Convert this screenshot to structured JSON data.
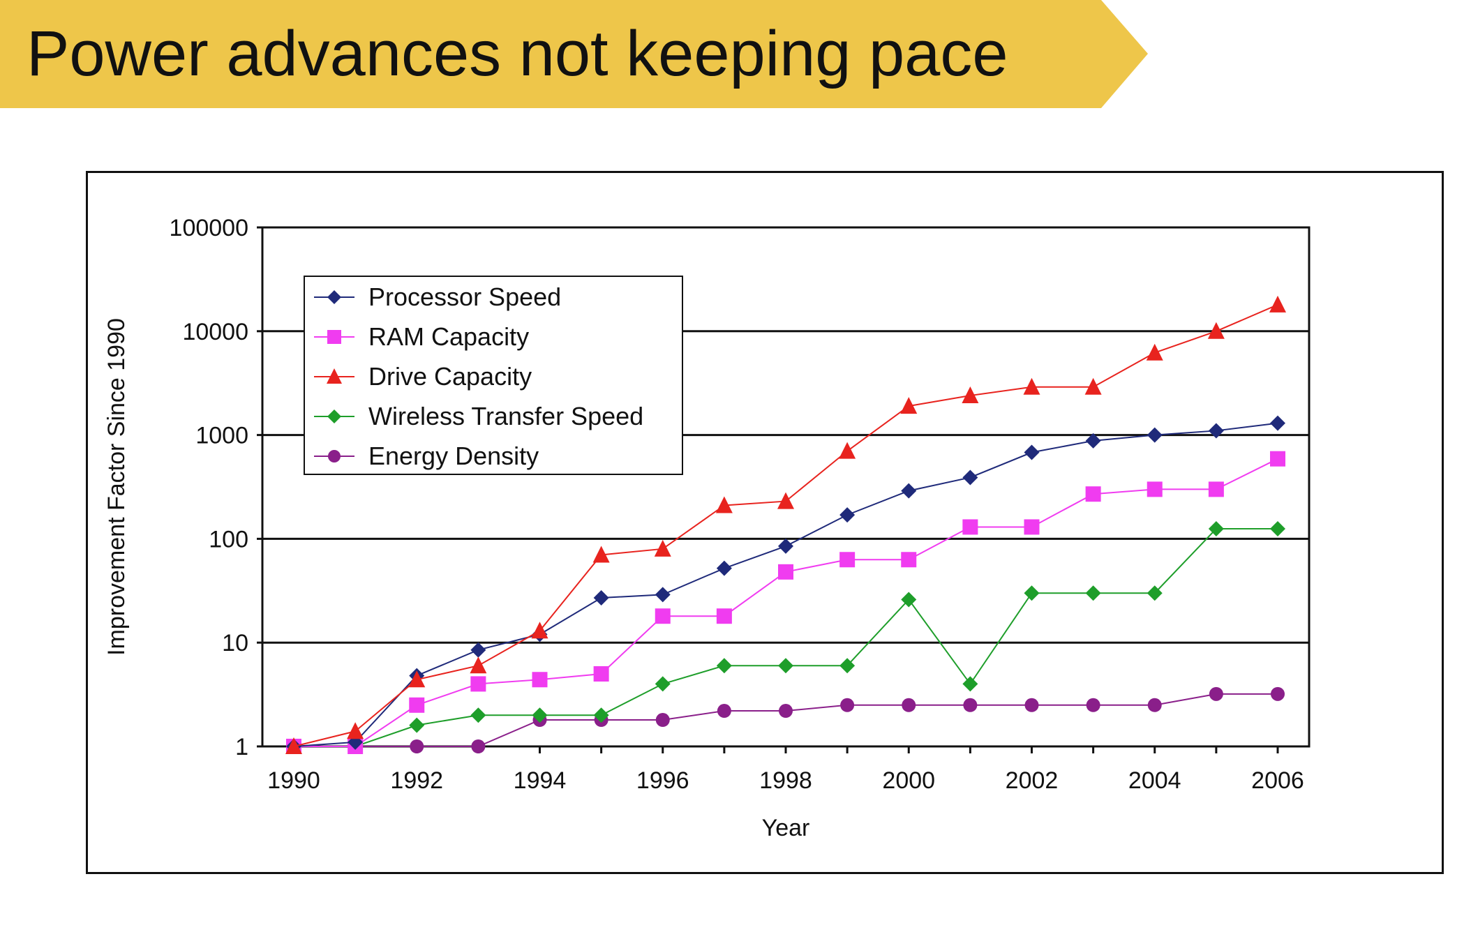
{
  "title": "Power advances not keeping pace",
  "colors": {
    "banner": "#EEC64A",
    "processor": "#1F2A7A",
    "ram": "#F03CF0",
    "drive": "#E8231E",
    "wireless": "#1E9E2A",
    "energy": "#8A1F8A"
  },
  "chart_data": {
    "type": "line",
    "xlabel": "Year",
    "ylabel": "Improvement Factor Since 1990",
    "yscale": "log",
    "ylim": [
      1,
      100000
    ],
    "xlim": [
      1990,
      2006
    ],
    "grid": "horizontal major lines",
    "legend_position": "top-left",
    "x": [
      1990,
      1991,
      1992,
      1993,
      1994,
      1995,
      1996,
      1997,
      1998,
      1999,
      2000,
      2001,
      2002,
      2003,
      2004,
      2005,
      2006
    ],
    "x_ticks": [
      "1990",
      "1992",
      "1994",
      "1996",
      "1998",
      "2000",
      "2002",
      "2004",
      "2006"
    ],
    "y_ticks": [
      "1",
      "10",
      "100",
      "1000",
      "10000",
      "100000"
    ],
    "series": [
      {
        "name": "Processor Speed",
        "marker": "diamond",
        "color_key": "processor",
        "values": [
          1,
          1.1,
          4.8,
          8.5,
          12,
          27,
          29,
          52,
          85,
          170,
          290,
          390,
          680,
          880,
          1000,
          1100,
          1300
        ]
      },
      {
        "name": "RAM Capacity",
        "marker": "square",
        "color_key": "ram",
        "values": [
          1,
          1,
          2.5,
          4,
          4.4,
          5,
          18,
          18,
          48,
          63,
          63,
          130,
          130,
          270,
          300,
          300,
          590
        ]
      },
      {
        "name": "Drive Capacity",
        "marker": "triangle",
        "color_key": "drive",
        "values": [
          1,
          1.4,
          4.4,
          6,
          13,
          70,
          80,
          210,
          230,
          700,
          1900,
          2400,
          2900,
          2900,
          6200,
          10000,
          18000
        ]
      },
      {
        "name": "Wireless Transfer Speed",
        "marker": "diamond",
        "color_key": "wireless",
        "values": [
          1,
          1,
          1.6,
          2,
          2,
          2,
          4,
          6,
          6,
          6,
          26,
          4,
          30,
          30,
          30,
          125,
          125
        ]
      },
      {
        "name": "Energy Density",
        "marker": "circle",
        "color_key": "energy",
        "values": [
          1,
          1,
          1,
          1,
          1.8,
          1.8,
          1.8,
          2.2,
          2.2,
          2.5,
          2.5,
          2.5,
          2.5,
          2.5,
          2.5,
          3.2,
          3.2
        ]
      }
    ]
  }
}
